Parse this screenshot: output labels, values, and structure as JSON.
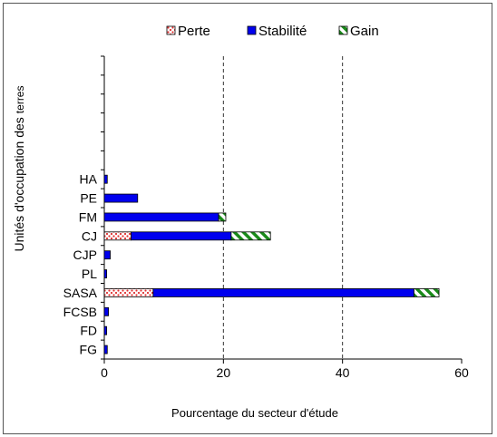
{
  "chart_data": {
    "type": "bar",
    "orientation": "horizontal",
    "stacked": true,
    "categories": [
      "HA",
      "PE",
      "FM",
      "CJ",
      "CJP",
      "PL",
      "SASA",
      "FCSB",
      "FD",
      "FG"
    ],
    "series": [
      {
        "name": "Perte",
        "color": "#e03030",
        "pattern": "dots",
        "values": [
          0,
          0,
          0,
          4.5,
          0,
          0,
          8.2,
          0,
          0,
          0
        ]
      },
      {
        "name": "Stabilité",
        "color": "#0000ee",
        "pattern": "solid",
        "values": [
          0.5,
          5.6,
          19.2,
          16.8,
          1.0,
          0.4,
          43.8,
          0.7,
          0.4,
          0.5
        ]
      },
      {
        "name": "Gain",
        "color": "#1a8a1a",
        "pattern": "diagonal",
        "values": [
          0,
          0,
          1.2,
          6.6,
          0,
          0,
          4.2,
          0,
          0,
          0
        ]
      }
    ],
    "xlabel": "Pourcentage du secteur d'étude",
    "ylabel_parts": [
      "Unités d'occupation",
      "des",
      "terres"
    ],
    "xlim": [
      0,
      60
    ],
    "xticks": [
      0,
      20,
      40,
      60
    ],
    "gridlines_x": [
      20,
      40
    ],
    "grid_style": "dashed vertical",
    "empty_category_slots_top": 6,
    "legend_position": "top"
  }
}
